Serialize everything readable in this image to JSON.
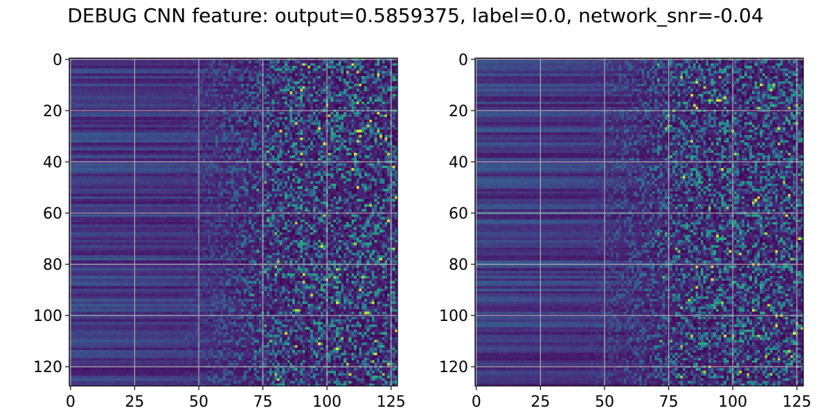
{
  "figure": {
    "title": "DEBUG CNN feature: output=0.5859375, label=0.0, network_snr=-0.04"
  },
  "chart_data": [
    {
      "type": "heatmap",
      "colormap": "viridis",
      "rows": 128,
      "cols": 128,
      "xlim": [
        -0.5,
        127.5
      ],
      "ylim": [
        127.5,
        -0.5
      ],
      "y_inverted": true,
      "grid": true,
      "xticks": [
        0,
        25,
        50,
        75,
        100,
        125
      ],
      "yticks": [
        0,
        20,
        40,
        60,
        80,
        100,
        120
      ],
      "xtick_labels": [
        "0",
        "25",
        "50",
        "75",
        "100",
        "125"
      ],
      "ytick_labels": [
        "0",
        "20",
        "40",
        "60",
        "80",
        "100",
        "120"
      ],
      "value_range": [
        0,
        1
      ],
      "pattern": "left columns (0–50): smooth low values with horizontal row banding; right columns (≈75–127): sparse noisy speckle with occasional high (yellow) outliers",
      "seed": 11
    },
    {
      "type": "heatmap",
      "colormap": "viridis",
      "rows": 128,
      "cols": 128,
      "xlim": [
        -0.5,
        127.5
      ],
      "ylim": [
        127.5,
        -0.5
      ],
      "y_inverted": true,
      "grid": true,
      "xticks": [
        0,
        25,
        50,
        75,
        100,
        125
      ],
      "yticks": [
        0,
        20,
        40,
        60,
        80,
        100,
        120
      ],
      "xtick_labels": [
        "0",
        "25",
        "50",
        "75",
        "100",
        "125"
      ],
      "ytick_labels": [
        "0",
        "20",
        "40",
        "60",
        "80",
        "100",
        "120"
      ],
      "value_range": [
        0,
        1
      ],
      "pattern": "left columns (0–50): smooth low values with horizontal row banding; right columns (≈70–127): sparse noisy speckle with occasional high (yellow) outliers",
      "seed": 29
    }
  ]
}
